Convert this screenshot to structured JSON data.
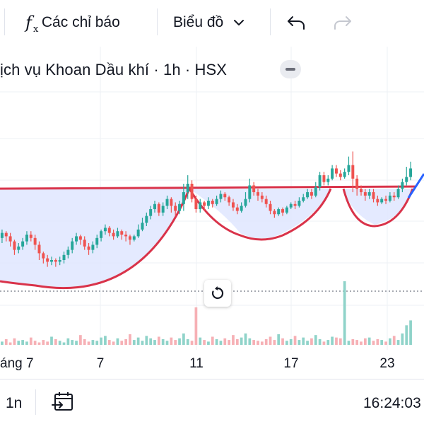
{
  "toolbar": {
    "indicators_label": "Các chỉ báo",
    "chart_type_label": "Biểu đồ",
    "icons": [
      "fx-icon",
      "chevron-down-icon",
      "undo-icon",
      "redo-icon"
    ]
  },
  "legend": {
    "title": "ịch vụ Khoan Dầu khí · 1h · HSX"
  },
  "time_axis": {
    "labels": [
      "áng 7",
      "7",
      "11",
      "17",
      "23"
    ]
  },
  "bottom_bar": {
    "interval": "1n",
    "clock": "16:24:03"
  },
  "colors": {
    "up": "#26a69a",
    "down": "#ef5350",
    "up_volume": "#8fd3c9",
    "down_volume": "#f6b0b5",
    "pattern_line": "#d9334a",
    "pattern_fill": "#dfe6ff",
    "trend": "#2962ff",
    "grid": "#eef0f4"
  },
  "chart_data": {
    "type": "candlestick",
    "title": "",
    "resistance": "flat horizontal line at the top of the pattern",
    "pattern": "cup and handle shading (lighter blue fill)",
    "price_ylim": [
      0,
      100
    ],
    "candles": [
      [
        43,
        46,
        40,
        48
      ],
      [
        46,
        44,
        41,
        47
      ],
      [
        44,
        41,
        38,
        46
      ],
      [
        41,
        36,
        33,
        42
      ],
      [
        36,
        38,
        34,
        40
      ],
      [
        38,
        41,
        36,
        43
      ],
      [
        41,
        45,
        39,
        47
      ],
      [
        45,
        43,
        41,
        47
      ],
      [
        43,
        39,
        36,
        45
      ],
      [
        39,
        34,
        30,
        41
      ],
      [
        34,
        31,
        28,
        35
      ],
      [
        31,
        29,
        26,
        33
      ],
      [
        29,
        30,
        27,
        32
      ],
      [
        30,
        29,
        26,
        31
      ],
      [
        29,
        30,
        27,
        32
      ],
      [
        30,
        33,
        28,
        35
      ],
      [
        33,
        36,
        31,
        38
      ],
      [
        36,
        41,
        34,
        43
      ],
      [
        41,
        44,
        39,
        46
      ],
      [
        44,
        42,
        39,
        45
      ],
      [
        42,
        38,
        36,
        44
      ],
      [
        38,
        36,
        33,
        40
      ],
      [
        36,
        39,
        34,
        41
      ],
      [
        39,
        43,
        37,
        45
      ],
      [
        43,
        47,
        41,
        48
      ],
      [
        47,
        49,
        45,
        51
      ],
      [
        49,
        46,
        44,
        50
      ],
      [
        46,
        44,
        42,
        48
      ],
      [
        44,
        47,
        43,
        49
      ],
      [
        47,
        45,
        42,
        48
      ],
      [
        45,
        44,
        41,
        47
      ],
      [
        44,
        42,
        39,
        45
      ],
      [
        42,
        44,
        41,
        45
      ],
      [
        44,
        48,
        43,
        51
      ],
      [
        48,
        52,
        47,
        55
      ],
      [
        52,
        56,
        50,
        58
      ],
      [
        56,
        60,
        54,
        62
      ],
      [
        60,
        63,
        58,
        65
      ],
      [
        63,
        58,
        56,
        64
      ],
      [
        58,
        62,
        56,
        64
      ],
      [
        62,
        66,
        60,
        68
      ],
      [
        66,
        62,
        58,
        67
      ],
      [
        62,
        59,
        56,
        64
      ],
      [
        59,
        63,
        57,
        65
      ],
      [
        63,
        70,
        59,
        75
      ],
      [
        70,
        75,
        66,
        80
      ],
      [
        75,
        66,
        64,
        77
      ],
      [
        66,
        60,
        58,
        68
      ],
      [
        60,
        64,
        58,
        66
      ],
      [
        64,
        62,
        59,
        65
      ],
      [
        62,
        65,
        60,
        67
      ],
      [
        65,
        63,
        61,
        66
      ],
      [
        63,
        66,
        62,
        68
      ],
      [
        66,
        69,
        64,
        71
      ],
      [
        69,
        67,
        65,
        70
      ],
      [
        67,
        64,
        62,
        68
      ],
      [
        64,
        61,
        59,
        66
      ],
      [
        61,
        59,
        57,
        63
      ],
      [
        59,
        62,
        58,
        64
      ],
      [
        62,
        66,
        61,
        70
      ],
      [
        66,
        74,
        64,
        78
      ],
      [
        74,
        70,
        68,
        76
      ],
      [
        70,
        68,
        65,
        72
      ],
      [
        68,
        66,
        64,
        70
      ],
      [
        66,
        63,
        61,
        68
      ],
      [
        63,
        59,
        57,
        65
      ],
      [
        59,
        57,
        55,
        60
      ],
      [
        57,
        60,
        56,
        61
      ],
      [
        60,
        58,
        56,
        61
      ],
      [
        58,
        61,
        57,
        62
      ],
      [
        61,
        63,
        60,
        64
      ],
      [
        63,
        62,
        60,
        65
      ],
      [
        62,
        65,
        61,
        67
      ],
      [
        65,
        67,
        64,
        69
      ],
      [
        67,
        70,
        66,
        72
      ],
      [
        70,
        68,
        66,
        72
      ],
      [
        68,
        73,
        67,
        76
      ],
      [
        73,
        80,
        71,
        82
      ],
      [
        80,
        76,
        74,
        82
      ],
      [
        76,
        78,
        74,
        80
      ],
      [
        78,
        84,
        77,
        86
      ],
      [
        84,
        81,
        79,
        86
      ],
      [
        81,
        79,
        77,
        83
      ],
      [
        79,
        82,
        78,
        84
      ],
      [
        82,
        86,
        80,
        91
      ],
      [
        86,
        78,
        70,
        94
      ],
      [
        78,
        72,
        68,
        80
      ],
      [
        72,
        70,
        68,
        74
      ],
      [
        70,
        68,
        65,
        72
      ],
      [
        68,
        70,
        66,
        72
      ],
      [
        70,
        66,
        64,
        72
      ],
      [
        66,
        64,
        62,
        68
      ],
      [
        64,
        66,
        63,
        67
      ],
      [
        66,
        65,
        63,
        68
      ],
      [
        65,
        68,
        64,
        70
      ],
      [
        68,
        67,
        65,
        70
      ],
      [
        67,
        72,
        66,
        74
      ],
      [
        72,
        76,
        70,
        78
      ],
      [
        76,
        79,
        74,
        85
      ],
      [
        79,
        84,
        77,
        88
      ]
    ],
    "volumes": [
      4,
      7,
      3,
      8,
      5,
      6,
      4,
      9,
      5,
      3,
      6,
      4,
      10,
      7,
      5,
      3,
      8,
      6,
      5,
      12,
      7,
      4,
      6,
      5,
      9,
      11,
      6,
      4,
      8,
      5,
      7,
      13,
      6,
      9,
      5,
      11,
      8,
      6,
      10,
      7,
      5,
      9,
      6,
      8,
      14,
      7,
      5,
      46,
      9,
      6,
      4,
      10,
      7,
      5,
      8,
      6,
      12,
      7,
      9,
      14,
      8,
      6,
      5,
      4,
      7,
      10,
      6,
      13,
      8,
      5,
      7,
      11,
      6,
      9,
      5,
      8,
      12,
      7,
      4,
      6,
      10,
      9,
      8,
      78,
      5,
      7,
      6,
      4,
      8,
      9,
      5,
      7,
      6,
      4,
      8,
      11,
      6,
      14,
      24,
      30
    ]
  }
}
